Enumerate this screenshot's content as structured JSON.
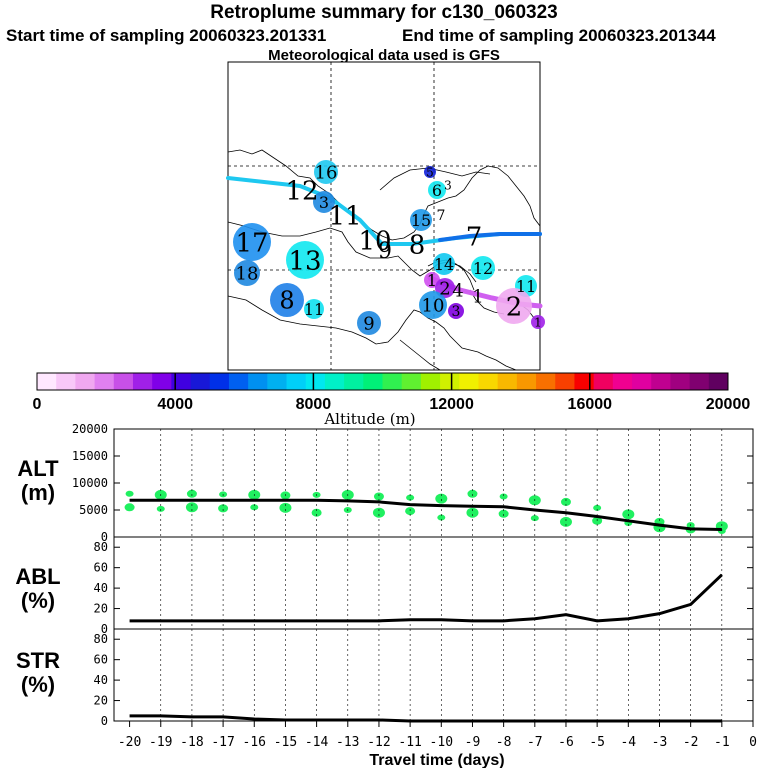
{
  "header": {
    "title": "Retroplume summary for c130_060323",
    "start": "Start time of sampling 20060323.201331",
    "end": "End time of sampling 20060323.201344",
    "met": "Meteorological data used is GFS"
  },
  "colorbar": {
    "label": "Altitude (m)",
    "tick_labels": [
      "0",
      "4000",
      "8000",
      "12000",
      "16000",
      "20000"
    ],
    "colors": [
      "#ffe8ff",
      "#f8c8f8",
      "#f0a8f0",
      "#e080f0",
      "#c850e8",
      "#a020e8",
      "#8000e8",
      "#4000e0",
      "#1818d8",
      "#0030e8",
      "#0060f0",
      "#0090f0",
      "#00b0f0",
      "#00d0f8",
      "#00e8f0",
      "#00f0c8",
      "#00f0a0",
      "#00f078",
      "#30f050",
      "#60f030",
      "#a0f000",
      "#d0f000",
      "#f0f000",
      "#f8d800",
      "#f8b800",
      "#f89800",
      "#f87000",
      "#f84000",
      "#f80000",
      "#f00060",
      "#f00090",
      "#e000a0",
      "#c00090",
      "#a00080",
      "#800070",
      "#600060"
    ]
  },
  "map": {
    "labels": [
      {
        "t": "16",
        "x": 326,
        "y": 172,
        "s": 18,
        "r": 12,
        "c": "#1ec8f0"
      },
      {
        "t": "12",
        "x": 302,
        "y": 190,
        "s": 26,
        "r": 0,
        "c": ""
      },
      {
        "t": "3",
        "x": 324,
        "y": 202,
        "s": 16,
        "r": 11,
        "c": "#1e88e0"
      },
      {
        "t": "11",
        "x": 345,
        "y": 215,
        "s": 26,
        "r": 0,
        "c": ""
      },
      {
        "t": "17",
        "x": 252,
        "y": 242,
        "s": 26,
        "r": 19,
        "c": "#1e90f0"
      },
      {
        "t": "18",
        "x": 247,
        "y": 273,
        "s": 18,
        "r": 13,
        "c": "#1e88e0"
      },
      {
        "t": "13",
        "x": 305,
        "y": 260,
        "s": 26,
        "r": 19,
        "c": "#10e8f0"
      },
      {
        "t": "8",
        "x": 287,
        "y": 300,
        "s": 24,
        "r": 17,
        "c": "#1e80e8"
      },
      {
        "t": "11",
        "x": 314,
        "y": 309,
        "s": 16,
        "r": 10,
        "c": "#10e0f0"
      },
      {
        "t": "9",
        "x": 369,
        "y": 323,
        "s": 18,
        "r": 12,
        "c": "#1e88e0"
      },
      {
        "t": "10",
        "x": 375,
        "y": 240,
        "s": 26,
        "r": 0,
        "c": ""
      },
      {
        "t": "9",
        "x": 385,
        "y": 250,
        "s": 22,
        "r": 0,
        "c": ""
      },
      {
        "t": "8",
        "x": 417,
        "y": 244,
        "s": 26,
        "r": 0,
        "c": ""
      },
      {
        "t": "7",
        "x": 474,
        "y": 236,
        "s": 26,
        "r": 0,
        "c": ""
      },
      {
        "t": "15",
        "x": 421,
        "y": 220,
        "s": 16,
        "r": 11,
        "c": "#1e98e8"
      },
      {
        "t": "7",
        "x": 441,
        "y": 215,
        "s": 14,
        "r": 0,
        "c": ""
      },
      {
        "t": "5",
        "x": 430,
        "y": 172,
        "s": 12,
        "r": 6,
        "c": "#1020d8"
      },
      {
        "t": "6",
        "x": 437,
        "y": 190,
        "s": 16,
        "r": 9,
        "c": "#10e8f0"
      },
      {
        "t": "3",
        "x": 448,
        "y": 185,
        "s": 12,
        "r": 0,
        "c": ""
      },
      {
        "t": "14",
        "x": 444,
        "y": 264,
        "s": 16,
        "r": 11,
        "c": "#10c8f0"
      },
      {
        "t": "12",
        "x": 483,
        "y": 268,
        "s": 16,
        "r": 12,
        "c": "#10e8f0"
      },
      {
        "t": "11",
        "x": 526,
        "y": 286,
        "s": 16,
        "r": 11,
        "c": "#10e8f0"
      },
      {
        "t": "1",
        "x": 432,
        "y": 280,
        "s": 16,
        "r": 8,
        "c": "#d050f0"
      },
      {
        "t": "2",
        "x": 445,
        "y": 288,
        "s": 18,
        "r": 10,
        "c": "#a020e8"
      },
      {
        "t": "4",
        "x": 458,
        "y": 290,
        "s": 18,
        "r": 0,
        "c": ""
      },
      {
        "t": "1",
        "x": 478,
        "y": 296,
        "s": 18,
        "r": 0,
        "c": ""
      },
      {
        "t": "10",
        "x": 433,
        "y": 305,
        "s": 18,
        "r": 14,
        "c": "#1e98e8"
      },
      {
        "t": "3",
        "x": 456,
        "y": 311,
        "s": 14,
        "r": 8,
        "c": "#8000e0"
      },
      {
        "t": "2",
        "x": 514,
        "y": 306,
        "s": 26,
        "r": 18,
        "c": "#f0a8f0"
      },
      {
        "t": "1",
        "x": 538,
        "y": 322,
        "s": 12,
        "r": 7,
        "c": "#a020e8"
      }
    ]
  },
  "chart_data": [
    {
      "type": "scatter",
      "title": "ALT (m)",
      "ylabel": "ALT (m)",
      "ylim": [
        0,
        20000
      ],
      "yticks": [
        0,
        5000,
        10000,
        15000,
        20000
      ],
      "line": {
        "x": [
          -20,
          -19,
          -18,
          -17,
          -16,
          -15,
          -14,
          -13,
          -12,
          -11,
          -10,
          -9,
          -8,
          -7,
          -6,
          -5,
          -4,
          -3,
          -2,
          -1
        ],
        "y": [
          6800,
          6800,
          6800,
          6800,
          6800,
          6800,
          6800,
          6700,
          6500,
          6000,
          5800,
          5700,
          5600,
          5000,
          4500,
          3800,
          3000,
          2200,
          1500,
          1400
        ]
      },
      "points": {
        "x": [
          -20,
          -20,
          -19,
          -19,
          -18,
          -18,
          -17,
          -17,
          -16,
          -16,
          -15,
          -15,
          -14,
          -14,
          -13,
          -13,
          -12,
          -12,
          -11,
          -11,
          -10,
          -10,
          -9,
          -9,
          -8,
          -8,
          -7,
          -7,
          -6,
          -6,
          -5,
          -5,
          -4,
          -4,
          -3,
          -3,
          -2,
          -2,
          -1,
          -1
        ],
        "y": [
          8000,
          5500,
          7800,
          5200,
          8000,
          5500,
          7900,
          5300,
          7800,
          5500,
          7700,
          5400,
          7800,
          4500,
          7800,
          5000,
          7500,
          4500,
          7300,
          4800,
          7100,
          3600,
          8000,
          4500,
          7500,
          4300,
          6800,
          3500,
          6500,
          2800,
          5400,
          3000,
          4200,
          2600,
          2800,
          1800,
          2200,
          1400,
          2000,
          1100
        ]
      }
    },
    {
      "type": "line",
      "title": "ABL (%)",
      "ylabel": "ABL (%)",
      "ylim": [
        0,
        90
      ],
      "yticks": [
        0,
        20,
        40,
        60,
        80
      ],
      "x": [
        -20,
        -19,
        -18,
        -17,
        -16,
        -15,
        -14,
        -13,
        -12,
        -11,
        -10,
        -9,
        -8,
        -7,
        -6,
        -5,
        -4,
        -3,
        -2,
        -1
      ],
      "y": [
        8,
        8,
        8,
        8,
        8,
        8,
        8,
        8,
        8,
        9,
        9,
        8,
        8,
        10,
        14,
        8,
        10,
        15,
        24,
        53
      ]
    },
    {
      "type": "line",
      "title": "STR (%)",
      "ylabel": "STR (%)",
      "ylim": [
        0,
        90
      ],
      "yticks": [
        0,
        20,
        40,
        60,
        80
      ],
      "x": [
        -20,
        -19,
        -18,
        -17,
        -16,
        -15,
        -14,
        -13,
        -12,
        -11,
        -10,
        -9,
        -8,
        -7,
        -6,
        -5,
        -4,
        -3,
        -2,
        -1
      ],
      "y": [
        5,
        5,
        4,
        4,
        2,
        1,
        1,
        1,
        1,
        0,
        0,
        0,
        0,
        0,
        0,
        0,
        0,
        0,
        0,
        0
      ]
    }
  ],
  "xaxis": {
    "ticks": [
      -20,
      -19,
      -18,
      -17,
      -16,
      -15,
      -14,
      -13,
      -12,
      -11,
      -10,
      -9,
      -8,
      -7,
      -6,
      -5,
      -4,
      -3,
      -2,
      -1,
      0
    ],
    "label": "Travel time (days)"
  },
  "panel_labels": {
    "alt_top": "ALT",
    "alt_bot": "(m)",
    "abl_top": "ABL",
    "abl_bot": "(%)",
    "str_top": "STR",
    "str_bot": "(%)"
  }
}
